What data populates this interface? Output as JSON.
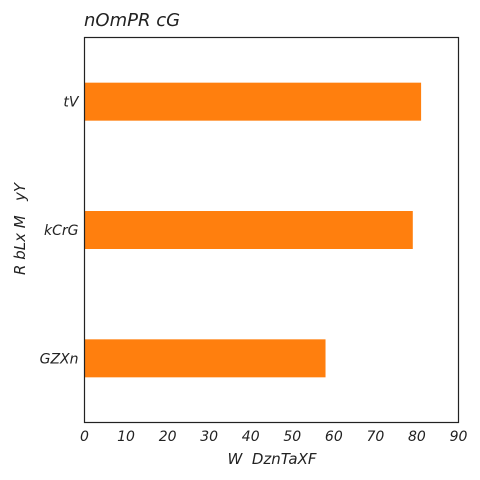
{
  "chart_data": {
    "type": "bar",
    "orientation": "horizontal",
    "title": "nOmPR cG",
    "xlabel": "W  DznTaXF",
    "ylabel": "R bLx M   yY",
    "categories": [
      "tV",
      "kCrG",
      "GZXn"
    ],
    "values": [
      81,
      79,
      58
    ],
    "xlim": [
      0,
      90
    ],
    "xticks": [
      0,
      10,
      20,
      30,
      40,
      50,
      60,
      70,
      80,
      90
    ],
    "grid": false,
    "bar_color": "#ff7f0e"
  }
}
